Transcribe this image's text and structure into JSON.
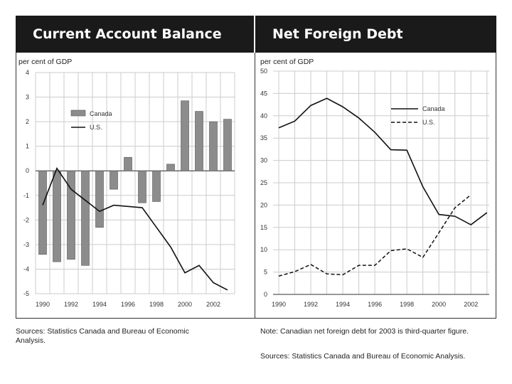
{
  "notes": {
    "left_sources": "Sources: Statistics Canada and Bureau of Economic Analysis.",
    "right_note": "Note: Canadian net foreign debt for 2003 is third-quarter figure.",
    "right_sources": "Sources: Statistics Canada and Bureau of Economic Analysis."
  },
  "colors": {
    "bar": "#8c8c8c",
    "line": "#111111",
    "grid": "#cccccc",
    "header_bg": "#1a1a1a"
  },
  "chart_data": [
    {
      "type": "bar",
      "title": "Current Account Balance",
      "ylabel": "per cent of GDP",
      "ylim": [
        -5,
        4
      ],
      "yticks": [
        -5,
        -4,
        -3,
        -2,
        -1,
        0,
        1,
        2,
        3,
        4
      ],
      "x": [
        1990,
        1991,
        1992,
        1993,
        1994,
        1995,
        1996,
        1997,
        1998,
        1999,
        2000,
        2001,
        2002,
        2003
      ],
      "xtick_labels": [
        "1990",
        "1992",
        "1994",
        "1996",
        "1998",
        "2000",
        "2002"
      ],
      "series": [
        {
          "name": "Canada",
          "kind": "bar",
          "values": [
            -3.4,
            -3.7,
            -3.6,
            -3.85,
            -2.3,
            -0.75,
            0.55,
            -1.3,
            -1.25,
            0.27,
            2.85,
            2.42,
            2.0,
            2.1
          ]
        },
        {
          "name": "U.S.",
          "kind": "line",
          "values": [
            -1.4,
            0.1,
            -0.75,
            -1.2,
            -1.65,
            -1.4,
            -1.45,
            -1.5,
            -2.3,
            -3.1,
            -4.15,
            -3.85,
            -4.55,
            -4.85
          ]
        }
      ],
      "legend": [
        "Canada",
        "U.S."
      ],
      "legend_position": "upper-left"
    },
    {
      "type": "line",
      "title": "Net Foreign Debt",
      "ylabel": "per cent of GDP",
      "ylim": [
        0,
        50
      ],
      "yticks": [
        0,
        5,
        10,
        15,
        20,
        25,
        30,
        35,
        40,
        45,
        50
      ],
      "x": [
        1990,
        1991,
        1992,
        1993,
        1994,
        1995,
        1996,
        1997,
        1998,
        1999,
        2000,
        2001,
        2002,
        2003
      ],
      "xtick_labels": [
        "1990",
        "1992",
        "1994",
        "1996",
        "1998",
        "2000",
        "2002"
      ],
      "series": [
        {
          "name": "Canada",
          "style": "solid",
          "values": [
            37.3,
            38.8,
            42.3,
            43.9,
            42.0,
            39.5,
            36.3,
            32.4,
            32.3,
            24.1,
            17.9,
            17.5,
            15.6,
            18.3
          ]
        },
        {
          "name": "U.S.",
          "style": "dashed",
          "values": [
            4.1,
            5.1,
            6.7,
            4.6,
            4.4,
            6.5,
            6.5,
            9.8,
            10.2,
            8.3,
            13.8,
            19.4,
            22.3,
            null
          ]
        }
      ],
      "legend": [
        "Canada",
        "U.S."
      ],
      "legend_position": "upper-right"
    }
  ]
}
